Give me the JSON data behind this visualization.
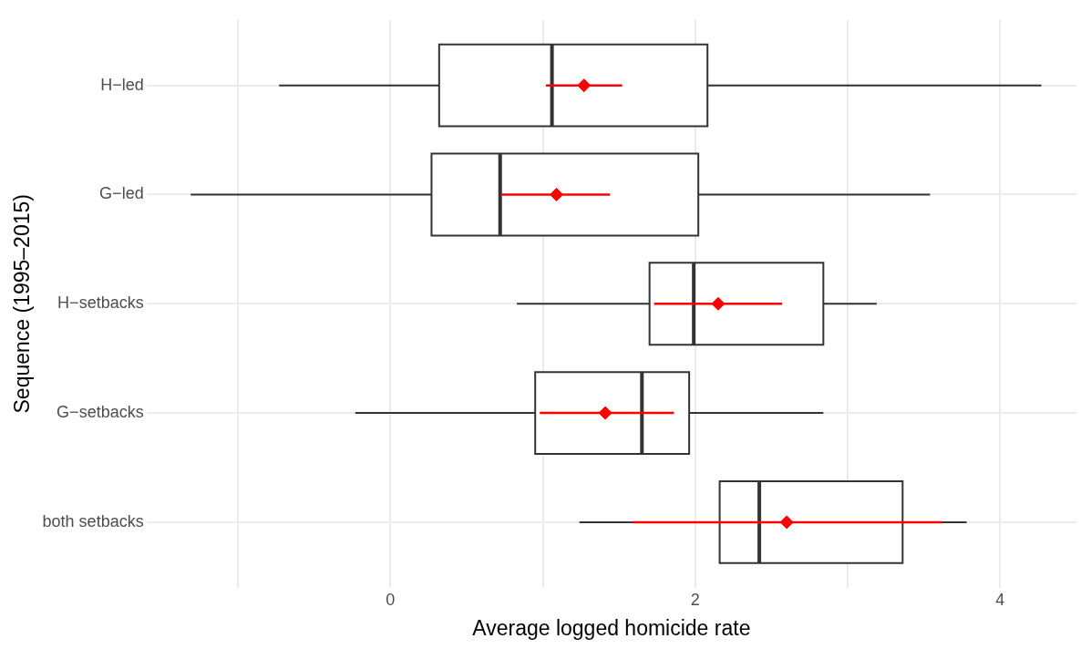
{
  "chart_data": {
    "type": "box",
    "orientation": "horizontal",
    "xlabel": "Average logged homicide rate",
    "ylabel": "Sequence (1995–2015)",
    "categories": [
      "H−led",
      "G−led",
      "H−setbacks",
      "G−setbacks",
      "both setbacks"
    ],
    "boxes": [
      {
        "low": -0.73,
        "q1": 0.32,
        "median": 1.06,
        "q3": 2.08,
        "high": 4.27
      },
      {
        "low": -1.31,
        "q1": 0.27,
        "median": 0.72,
        "q3": 2.02,
        "high": 3.54
      },
      {
        "low": 0.83,
        "q1": 1.7,
        "median": 1.99,
        "q3": 2.84,
        "high": 3.19
      },
      {
        "low": -0.23,
        "q1": 0.95,
        "median": 1.65,
        "q3": 1.96,
        "high": 2.84
      },
      {
        "low": 1.24,
        "q1": 2.16,
        "median": 2.42,
        "q3": 3.36,
        "high": 3.78
      }
    ],
    "series": [
      {
        "type": "scatter",
        "color": "#ff0000",
        "marker": "diamond",
        "values": [
          1.27,
          1.09,
          2.15,
          1.41,
          2.6
        ],
        "errors": [
          [
            1.02,
            1.52
          ],
          [
            0.73,
            1.44
          ],
          [
            1.73,
            2.57
          ],
          [
            0.98,
            1.86
          ],
          [
            1.59,
            3.62
          ]
        ]
      }
    ],
    "xlim": [
      -1.6,
      4.5
    ],
    "xticks": [
      {
        "value": -1,
        "label": null
      },
      0,
      {
        "value": 1,
        "label": null
      },
      2,
      {
        "value": 3,
        "label": null
      },
      4
    ],
    "grid": true,
    "legend": false
  }
}
